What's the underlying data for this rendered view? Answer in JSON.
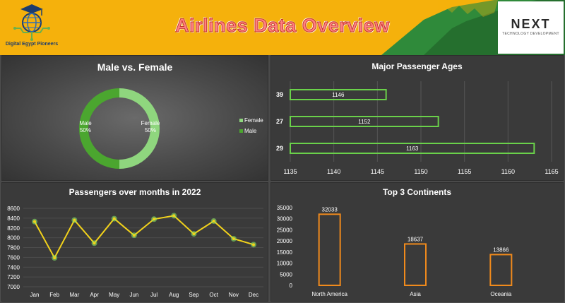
{
  "header": {
    "title": "Airlines Data Overview",
    "left_logo_text": "Digital Egypt Pioneers",
    "right_logo_main": "NEXT",
    "right_logo_sub": "TECHNOLOGY DEVELOPMENT"
  },
  "colors": {
    "banner": "#f5b10c",
    "banner_green": "#2f8a3a",
    "bar_green": "#6ad14a",
    "line_yellow": "#f2d21b",
    "marker_green": "#8bf06a",
    "bar_orange": "#f08a1c"
  },
  "chart_data": [
    {
      "type": "pie",
      "title": "Male vs. Female",
      "categories": [
        "Female",
        "Male"
      ],
      "values": [
        50,
        50
      ],
      "colors": [
        "#8fd67e",
        "#4ba62f"
      ],
      "data_labels": [
        "Female\n50%",
        "Male\n50%"
      ],
      "legend": "right"
    },
    {
      "type": "bar",
      "orientation": "horizontal",
      "title": "Major Passenger Ages",
      "categories": [
        "39",
        "27",
        "29"
      ],
      "values": [
        1146,
        1152,
        1163
      ],
      "xlim": [
        1135,
        1165
      ],
      "x_ticks": [
        1135,
        1140,
        1145,
        1150,
        1155,
        1160,
        1165
      ],
      "grid": true
    },
    {
      "type": "line",
      "title": "Passengers over months in 2022",
      "categories": [
        "Jan",
        "Feb",
        "Mar",
        "Apr",
        "May",
        "Jun",
        "Jul",
        "Aug",
        "Sep",
        "Oct",
        "Nov",
        "Dec"
      ],
      "values": [
        8330,
        7590,
        8360,
        7890,
        8390,
        8050,
        8380,
        8450,
        8080,
        8340,
        7980,
        7860
      ],
      "ylim": [
        7000,
        8600
      ],
      "y_ticks": [
        7000,
        7100,
        7200,
        7300,
        7400,
        7500,
        7600,
        7700,
        7800,
        7900,
        8000,
        8100,
        8200,
        8300,
        8400,
        8500,
        8600
      ],
      "grid": true
    },
    {
      "type": "bar",
      "title": "Top 3 Continents",
      "categories": [
        "North America",
        "Asia",
        "Oceania"
      ],
      "values": [
        32033,
        18637,
        13866
      ],
      "ylim": [
        0,
        35000
      ],
      "y_ticks": [
        0,
        5000,
        10000,
        15000,
        20000,
        25000,
        30000,
        35000
      ]
    }
  ]
}
